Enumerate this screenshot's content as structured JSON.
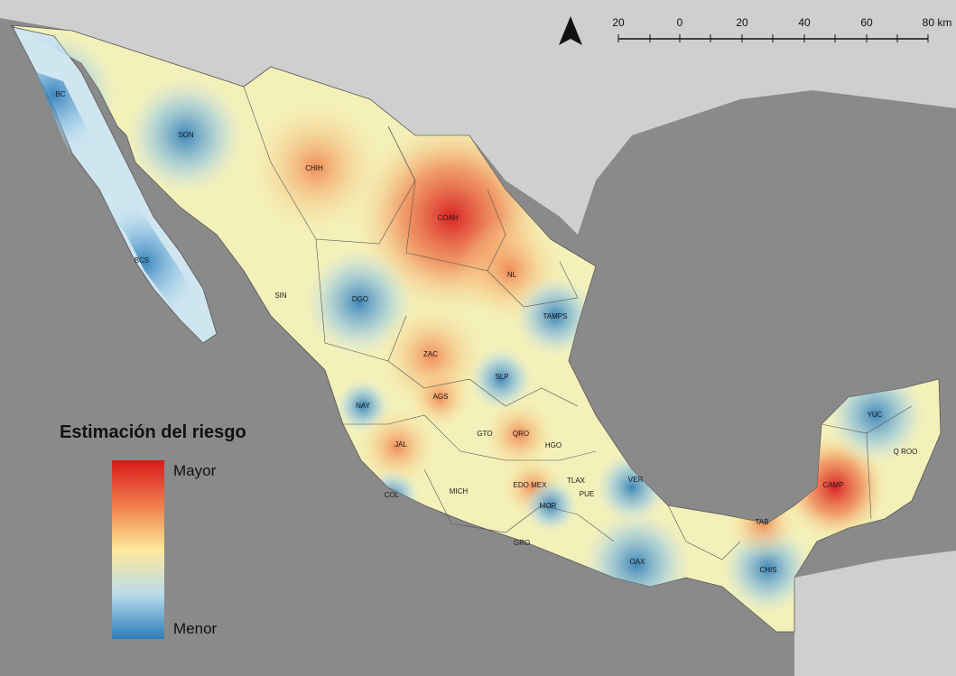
{
  "map": {
    "palette": {
      "high": "#d7191c",
      "mid_high": "#f07c4a",
      "mid": "#fee99a",
      "mid_low": "#b9dcea",
      "low": "#2b7bb9",
      "land": "#f3f0b9",
      "background": "#8a8a8a"
    },
    "states": [
      {
        "label": "BC",
        "risk": "low"
      },
      {
        "label": "BCS",
        "risk": "low"
      },
      {
        "label": "SON",
        "risk": "low"
      },
      {
        "label": "CHIH",
        "risk": "high"
      },
      {
        "label": "COAH",
        "risk": "very-high"
      },
      {
        "label": "NL",
        "risk": "high"
      },
      {
        "label": "TAMPS",
        "risk": "low"
      },
      {
        "label": "SIN",
        "risk": "mid"
      },
      {
        "label": "DGO",
        "risk": "low"
      },
      {
        "label": "ZAC",
        "risk": "high"
      },
      {
        "label": "SLP",
        "risk": "low"
      },
      {
        "label": "AGS",
        "risk": "high"
      },
      {
        "label": "NAY",
        "risk": "low"
      },
      {
        "label": "JAL",
        "risk": "high"
      },
      {
        "label": "GTO",
        "risk": "mid"
      },
      {
        "label": "QRO",
        "risk": "high"
      },
      {
        "label": "HGO",
        "risk": "mid"
      },
      {
        "label": "COL",
        "risk": "low"
      },
      {
        "label": "MICH",
        "risk": "mid"
      },
      {
        "label": "EDO MEX",
        "risk": "mid-high"
      },
      {
        "label": "TLAX",
        "risk": "low"
      },
      {
        "label": "PUE",
        "risk": "mid"
      },
      {
        "label": "MOR",
        "risk": "low"
      },
      {
        "label": "VER",
        "risk": "low"
      },
      {
        "label": "GRO",
        "risk": "mid"
      },
      {
        "label": "OAX",
        "risk": "low"
      },
      {
        "label": "TAB",
        "risk": "high"
      },
      {
        "label": "CAMP",
        "risk": "very-high"
      },
      {
        "label": "CHIS",
        "risk": "low"
      },
      {
        "label": "YUC",
        "risk": "low"
      },
      {
        "label": "Q ROO",
        "risk": "mid"
      }
    ]
  },
  "legend": {
    "title": "Estimación del riesgo",
    "max_label": "Mayor",
    "min_label": "Menor"
  },
  "scale_bar": {
    "ticks": [
      "20",
      "0",
      "20",
      "40",
      "60",
      "80 km"
    ]
  },
  "north_arrow": {
    "icon": "north-arrow-icon"
  }
}
